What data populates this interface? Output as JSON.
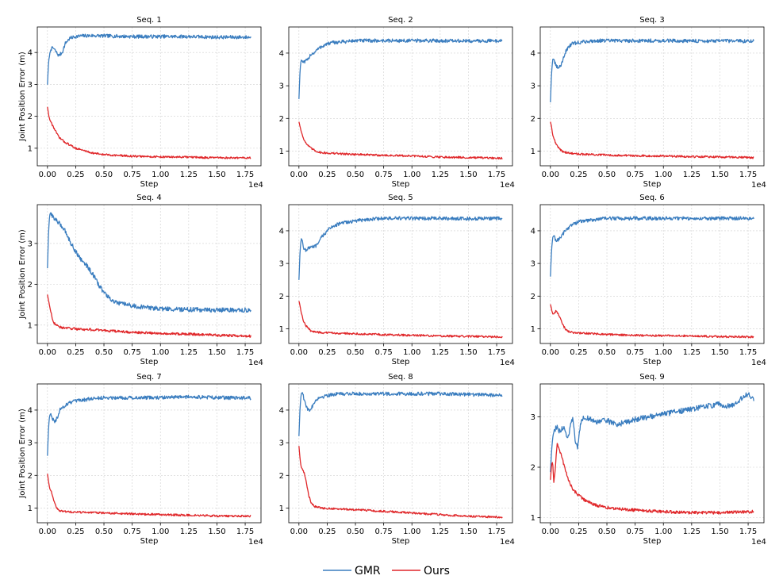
{
  "chart_data": {
    "type": "line",
    "layout": "3x3 grid of line plots",
    "x_label": "Step",
    "y_label": "Joint Position Error (m)",
    "x_offset_text": "1e4",
    "x_ticks": [
      0.0,
      0.25,
      0.5,
      0.75,
      1.0,
      1.25,
      1.5,
      1.75
    ],
    "x_tick_labels": [
      "0.00",
      "0.25",
      "0.50",
      "0.75",
      "1.00",
      "1.25",
      "1.50",
      "1.75"
    ],
    "x_unit_note": "x values in units of 1e4 steps",
    "xlim": [
      -0.09,
      1.89
    ],
    "grid": true,
    "legend": {
      "placement": "bottom-center",
      "entries": [
        {
          "name": "GMR",
          "color": "#3a7dbf"
        },
        {
          "name": "Ours",
          "color": "#e0272a"
        }
      ]
    },
    "panels": [
      {
        "title": "Seq. 1",
        "ylim": [
          0.45,
          4.8
        ],
        "y_ticks": [
          1,
          2,
          3,
          4
        ],
        "series": [
          {
            "name": "GMR",
            "x": [
              0,
              0.01,
              0.02,
              0.03,
              0.05,
              0.08,
              0.1,
              0.13,
              0.16,
              0.2,
              0.25,
              0.3,
              0.4,
              0.5,
              0.75,
              1.0,
              1.25,
              1.5,
              1.8
            ],
            "y": [
              3.0,
              3.7,
              3.95,
              4.1,
              4.15,
              4.0,
              3.9,
              4.0,
              4.3,
              4.45,
              4.5,
              4.52,
              4.53,
              4.52,
              4.5,
              4.5,
              4.5,
              4.48,
              4.48
            ]
          },
          {
            "name": "Ours",
            "x": [
              0,
              0.01,
              0.02,
              0.04,
              0.07,
              0.1,
              0.15,
              0.2,
              0.25,
              0.3,
              0.4,
              0.5,
              0.75,
              1.0,
              1.25,
              1.5,
              1.8
            ],
            "y": [
              2.3,
              2.05,
              1.9,
              1.75,
              1.55,
              1.35,
              1.2,
              1.1,
              1.0,
              0.95,
              0.85,
              0.8,
              0.75,
              0.73,
              0.72,
              0.7,
              0.7
            ]
          }
        ]
      },
      {
        "title": "Seq. 2",
        "ylim": [
          0.55,
          4.8
        ],
        "y_ticks": [
          1,
          2,
          3,
          4
        ],
        "series": [
          {
            "name": "GMR",
            "x": [
              0,
              0.01,
              0.02,
              0.04,
              0.06,
              0.08,
              0.1,
              0.13,
              0.16,
              0.2,
              0.25,
              0.3,
              0.4,
              0.5,
              0.75,
              1.0,
              1.25,
              1.5,
              1.8
            ],
            "y": [
              2.6,
              3.5,
              3.8,
              3.7,
              3.75,
              3.8,
              3.95,
              4.0,
              4.1,
              4.2,
              4.28,
              4.32,
              4.35,
              4.38,
              4.38,
              4.38,
              4.38,
              4.37,
              4.38
            ]
          },
          {
            "name": "Ours",
            "x": [
              0,
              0.01,
              0.02,
              0.04,
              0.06,
              0.1,
              0.15,
              0.2,
              0.3,
              0.5,
              0.75,
              1.0,
              1.25,
              1.5,
              1.8
            ],
            "y": [
              1.9,
              1.75,
              1.6,
              1.4,
              1.25,
              1.1,
              1.0,
              0.95,
              0.93,
              0.9,
              0.87,
              0.85,
              0.82,
              0.8,
              0.78
            ]
          }
        ]
      },
      {
        "title": "Seq. 3",
        "ylim": [
          0.55,
          4.8
        ],
        "y_ticks": [
          1,
          2,
          3,
          4
        ],
        "series": [
          {
            "name": "GMR",
            "x": [
              0,
              0.01,
              0.02,
              0.03,
              0.05,
              0.07,
              0.09,
              0.11,
              0.13,
              0.16,
              0.2,
              0.25,
              0.3,
              0.4,
              0.5,
              0.75,
              1.0,
              1.25,
              1.5,
              1.8
            ],
            "y": [
              2.5,
              3.4,
              3.8,
              3.8,
              3.6,
              3.55,
              3.6,
              3.8,
              4.0,
              4.2,
              4.3,
              4.32,
              4.35,
              4.38,
              4.38,
              4.38,
              4.38,
              4.37,
              4.37,
              4.37
            ]
          },
          {
            "name": "Ours",
            "x": [
              0,
              0.01,
              0.02,
              0.04,
              0.06,
              0.1,
              0.15,
              0.2,
              0.3,
              0.5,
              0.75,
              1.0,
              1.25,
              1.5,
              1.8
            ],
            "y": [
              1.9,
              1.75,
              1.5,
              1.3,
              1.15,
              1.0,
              0.95,
              0.92,
              0.9,
              0.88,
              0.86,
              0.85,
              0.83,
              0.82,
              0.8
            ]
          }
        ]
      },
      {
        "title": "Seq. 4",
        "ylim": [
          0.55,
          3.95
        ],
        "y_ticks": [
          1,
          2,
          3
        ],
        "series": [
          {
            "name": "GMR",
            "x": [
              0,
              0.01,
              0.02,
              0.03,
              0.05,
              0.1,
              0.15,
              0.2,
              0.25,
              0.3,
              0.35,
              0.4,
              0.45,
              0.5,
              0.55,
              0.6,
              0.7,
              0.8,
              1.0,
              1.25,
              1.5,
              1.8
            ],
            "y": [
              2.4,
              3.3,
              3.7,
              3.75,
              3.65,
              3.5,
              3.35,
              3.05,
              2.8,
              2.6,
              2.45,
              2.25,
              2.0,
              1.8,
              1.65,
              1.55,
              1.5,
              1.45,
              1.4,
              1.38,
              1.37,
              1.37
            ]
          },
          {
            "name": "Ours",
            "x": [
              0,
              0.01,
              0.02,
              0.04,
              0.06,
              0.1,
              0.15,
              0.2,
              0.3,
              0.5,
              0.75,
              1.0,
              1.25,
              1.5,
              1.8
            ],
            "y": [
              1.75,
              1.6,
              1.45,
              1.2,
              1.05,
              0.95,
              0.93,
              0.92,
              0.9,
              0.87,
              0.82,
              0.8,
              0.78,
              0.75,
              0.73
            ]
          }
        ]
      },
      {
        "title": "Seq. 5",
        "ylim": [
          0.55,
          4.8
        ],
        "y_ticks": [
          1,
          2,
          3,
          4
        ],
        "series": [
          {
            "name": "GMR",
            "x": [
              0,
              0.01,
              0.02,
              0.03,
              0.04,
              0.06,
              0.08,
              0.1,
              0.13,
              0.16,
              0.2,
              0.25,
              0.3,
              0.4,
              0.5,
              0.6,
              0.75,
              1.0,
              1.25,
              1.5,
              1.8
            ],
            "y": [
              2.5,
              3.4,
              3.75,
              3.7,
              3.5,
              3.4,
              3.45,
              3.5,
              3.5,
              3.55,
              3.8,
              4.0,
              4.15,
              4.25,
              4.3,
              4.35,
              4.38,
              4.38,
              4.38,
              4.37,
              4.38
            ]
          },
          {
            "name": "Ours",
            "x": [
              0,
              0.01,
              0.02,
              0.04,
              0.06,
              0.1,
              0.15,
              0.2,
              0.3,
              0.5,
              0.75,
              1.0,
              1.25,
              1.5,
              1.8
            ],
            "y": [
              1.85,
              1.7,
              1.5,
              1.25,
              1.1,
              0.95,
              0.9,
              0.88,
              0.87,
              0.85,
              0.82,
              0.8,
              0.78,
              0.77,
              0.75
            ]
          }
        ]
      },
      {
        "title": "Seq. 6",
        "ylim": [
          0.55,
          4.8
        ],
        "y_ticks": [
          1,
          2,
          3,
          4
        ],
        "series": [
          {
            "name": "GMR",
            "x": [
              0,
              0.01,
              0.02,
              0.03,
              0.05,
              0.08,
              0.1,
              0.13,
              0.16,
              0.2,
              0.25,
              0.3,
              0.4,
              0.5,
              0.75,
              1.0,
              1.25,
              1.5,
              1.8
            ],
            "y": [
              2.6,
              3.4,
              3.8,
              3.85,
              3.7,
              3.75,
              3.85,
              4.0,
              4.1,
              4.2,
              4.28,
              4.3,
              4.35,
              4.38,
              4.38,
              4.38,
              4.38,
              4.38,
              4.38
            ]
          },
          {
            "name": "Ours",
            "x": [
              0,
              0.01,
              0.02,
              0.03,
              0.05,
              0.07,
              0.1,
              0.13,
              0.16,
              0.2,
              0.3,
              0.5,
              0.75,
              1.0,
              1.25,
              1.5,
              1.8
            ],
            "y": [
              1.75,
              1.6,
              1.45,
              1.45,
              1.55,
              1.45,
              1.2,
              1.0,
              0.92,
              0.88,
              0.86,
              0.83,
              0.8,
              0.79,
              0.78,
              0.76,
              0.75
            ]
          }
        ]
      },
      {
        "title": "Seq. 7",
        "ylim": [
          0.55,
          4.8
        ],
        "y_ticks": [
          1,
          2,
          3,
          4
        ],
        "series": [
          {
            "name": "GMR",
            "x": [
              0,
              0.01,
              0.02,
              0.03,
              0.05,
              0.07,
              0.09,
              0.11,
              0.14,
              0.18,
              0.22,
              0.3,
              0.4,
              0.5,
              0.75,
              1.0,
              1.25,
              1.5,
              1.8
            ],
            "y": [
              2.6,
              3.5,
              3.85,
              3.9,
              3.7,
              3.65,
              3.8,
              4.0,
              4.1,
              4.2,
              4.25,
              4.3,
              4.35,
              4.38,
              4.38,
              4.38,
              4.4,
              4.38,
              4.37
            ]
          },
          {
            "name": "Ours",
            "x": [
              0,
              0.01,
              0.02,
              0.04,
              0.06,
              0.08,
              0.1,
              0.15,
              0.2,
              0.3,
              0.5,
              0.75,
              1.0,
              1.25,
              1.5,
              1.8
            ],
            "y": [
              2.05,
              1.8,
              1.6,
              1.45,
              1.2,
              1.0,
              0.92,
              0.9,
              0.88,
              0.87,
              0.85,
              0.82,
              0.8,
              0.78,
              0.76,
              0.75
            ]
          }
        ]
      },
      {
        "title": "Seq. 8",
        "ylim": [
          0.55,
          4.8
        ],
        "y_ticks": [
          1,
          2,
          3,
          4
        ],
        "series": [
          {
            "name": "GMR",
            "x": [
              0,
              0.01,
              0.02,
              0.03,
              0.04,
              0.06,
              0.08,
              0.1,
              0.13,
              0.16,
              0.2,
              0.25,
              0.3,
              0.4,
              0.5,
              0.75,
              1.0,
              1.25,
              1.5,
              1.8
            ],
            "y": [
              3.2,
              4.1,
              4.5,
              4.55,
              4.4,
              4.15,
              4.0,
              4.0,
              4.2,
              4.35,
              4.4,
              4.45,
              4.48,
              4.5,
              4.5,
              4.5,
              4.5,
              4.5,
              4.48,
              4.45
            ]
          },
          {
            "name": "Ours",
            "x": [
              0,
              0.01,
              0.02,
              0.03,
              0.05,
              0.07,
              0.09,
              0.11,
              0.14,
              0.2,
              0.3,
              0.5,
              0.75,
              1.0,
              1.25,
              1.5,
              1.8
            ],
            "y": [
              2.9,
              2.5,
              2.25,
              2.2,
              2.05,
              1.7,
              1.35,
              1.15,
              1.05,
              1.0,
              0.98,
              0.95,
              0.9,
              0.85,
              0.8,
              0.75,
              0.72
            ]
          }
        ]
      },
      {
        "title": "Seq. 9",
        "ylim": [
          0.9,
          3.65
        ],
        "y_ticks": [
          1,
          2,
          3
        ],
        "series": [
          {
            "name": "GMR",
            "x": [
              0,
              0.01,
              0.02,
              0.04,
              0.06,
              0.08,
              0.1,
              0.12,
              0.14,
              0.16,
              0.18,
              0.2,
              0.22,
              0.24,
              0.27,
              0.3,
              0.35,
              0.4,
              0.5,
              0.6,
              0.75,
              1.0,
              1.25,
              1.5,
              1.6,
              1.75,
              1.8
            ],
            "y": [
              1.9,
              2.3,
              2.6,
              2.75,
              2.8,
              2.7,
              2.75,
              2.8,
              2.65,
              2.6,
              2.85,
              2.95,
              2.5,
              2.4,
              2.9,
              3.0,
              2.95,
              2.9,
              2.92,
              2.85,
              2.95,
              3.05,
              3.15,
              3.25,
              3.2,
              3.45,
              3.35
            ]
          },
          {
            "name": "Ours",
            "x": [
              0,
              0.01,
              0.02,
              0.03,
              0.04,
              0.05,
              0.06,
              0.08,
              0.1,
              0.12,
              0.15,
              0.2,
              0.25,
              0.3,
              0.4,
              0.5,
              0.75,
              1.0,
              1.25,
              1.5,
              1.8
            ],
            "y": [
              1.75,
              2.05,
              2.1,
              1.7,
              1.9,
              2.2,
              2.45,
              2.35,
              2.2,
              2.05,
              1.8,
              1.55,
              1.45,
              1.35,
              1.25,
              1.2,
              1.15,
              1.12,
              1.1,
              1.1,
              1.12
            ]
          }
        ]
      }
    ]
  }
}
